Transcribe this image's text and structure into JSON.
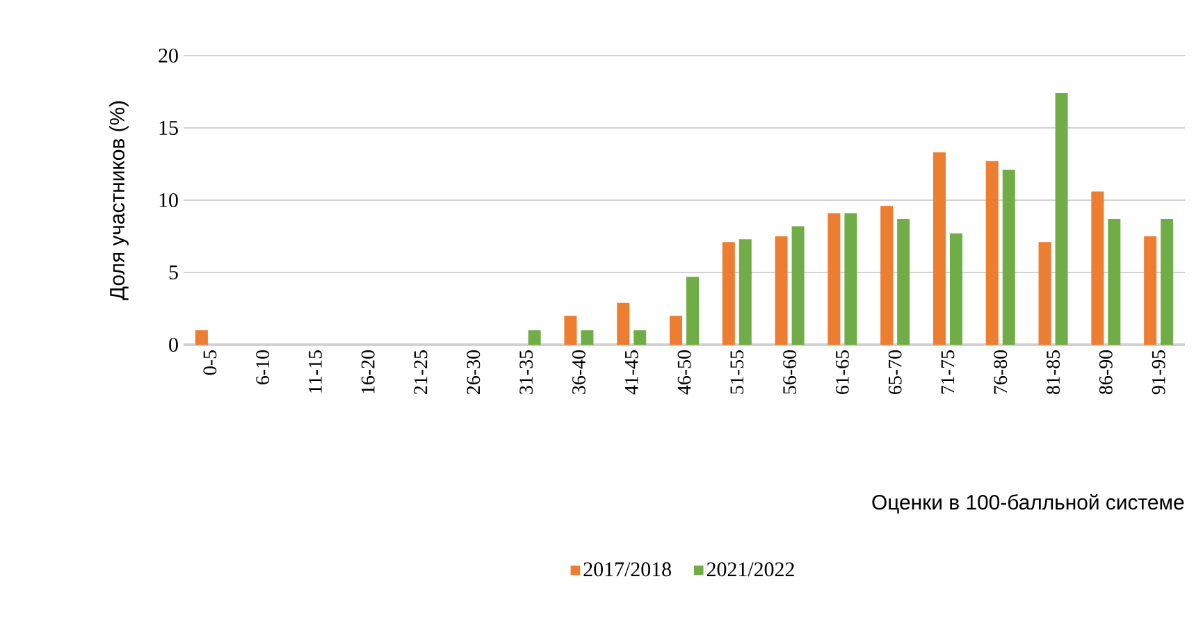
{
  "chart_data": {
    "type": "bar",
    "xlabel": "Оценки в 100-балльной системе",
    "ylabel": "Доля участников (%)",
    "categories": [
      "0-5",
      "6-10",
      "11-15",
      "16-20",
      "21-25",
      "26-30",
      "31-35",
      "36-40",
      "41-45",
      "46-50",
      "51-55",
      "56-60",
      "61-65",
      "65-70",
      "71-75",
      "76-80",
      "81-85",
      "86-90",
      "91-95"
    ],
    "series": [
      {
        "name": "2017/2018",
        "color": "#ed7d31",
        "values": [
          1,
          0,
          0,
          0,
          0,
          0,
          0,
          2,
          2.9,
          2,
          7.1,
          7.5,
          9.1,
          9.6,
          13.3,
          12.7,
          7.1,
          10.6,
          7.5
        ]
      },
      {
        "name": "2021/2022",
        "color": "#70ad47",
        "values": [
          0,
          0,
          0,
          0,
          0,
          0,
          1,
          1,
          1,
          4.7,
          7.3,
          8.2,
          9.1,
          8.7,
          7.7,
          12.1,
          17.4,
          8.7,
          8.7
        ]
      }
    ],
    "ylim": [
      0,
      20
    ],
    "yticks": [
      0,
      5,
      10,
      15,
      20
    ],
    "grid": "y",
    "legend": "bottom"
  }
}
